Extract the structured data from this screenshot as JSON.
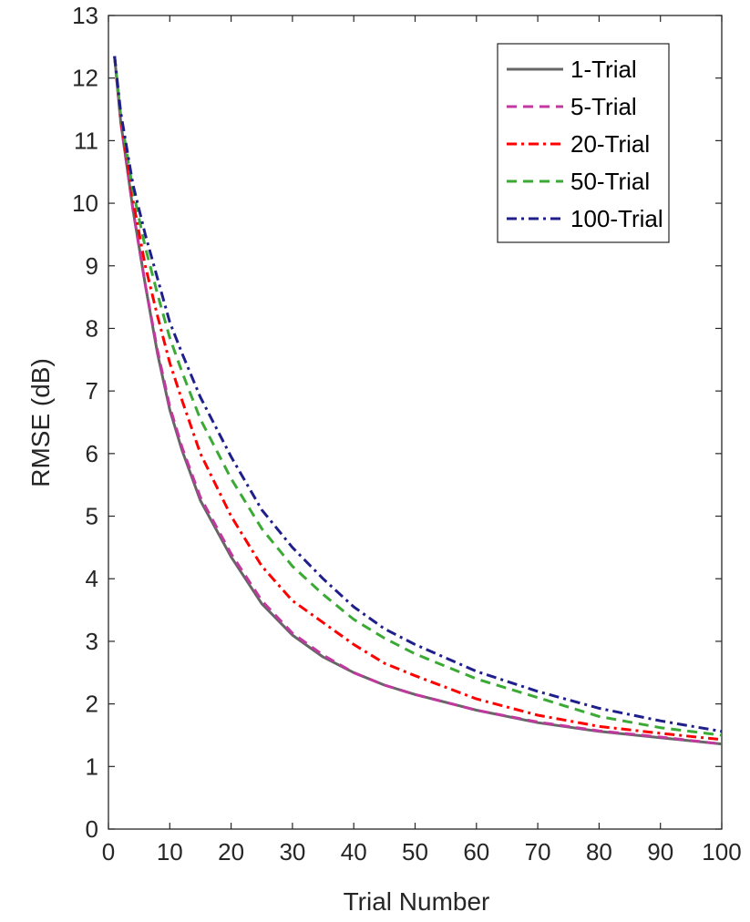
{
  "chart_data": {
    "type": "line",
    "title": "",
    "xlabel": "Trial Number",
    "ylabel": "RMSE (dB)",
    "xlim": [
      0,
      100
    ],
    "ylim": [
      0,
      13
    ],
    "xticks": [
      0,
      10,
      20,
      30,
      40,
      50,
      60,
      70,
      80,
      90,
      100
    ],
    "yticks": [
      0,
      1,
      2,
      3,
      4,
      5,
      6,
      7,
      8,
      9,
      10,
      11,
      12,
      13
    ],
    "grid": false,
    "legend_position": "top-right",
    "x": [
      1,
      2,
      4,
      6,
      8,
      10,
      12,
      15,
      20,
      25,
      30,
      35,
      40,
      45,
      50,
      60,
      70,
      80,
      90,
      100
    ],
    "series": [
      {
        "name": "1-Trial",
        "color": "#666666",
        "style": "solid",
        "values": [
          12.35,
          11.3,
          9.9,
          8.7,
          7.6,
          6.7,
          6.05,
          5.25,
          4.35,
          3.6,
          3.1,
          2.75,
          2.5,
          2.3,
          2.15,
          1.9,
          1.7,
          1.56,
          1.46,
          1.36
        ]
      },
      {
        "name": "5-Trial",
        "color": "#c1389e",
        "style": "dashed",
        "values": [
          12.35,
          11.3,
          9.9,
          8.7,
          7.65,
          6.75,
          6.1,
          5.3,
          4.4,
          3.65,
          3.13,
          2.78,
          2.5,
          2.3,
          2.15,
          1.9,
          1.71,
          1.57,
          1.47,
          1.36
        ]
      },
      {
        "name": "20-Trial",
        "color": "#ff0000",
        "style": "dashdot",
        "values": [
          12.35,
          11.35,
          10.05,
          9.0,
          8.2,
          7.45,
          6.85,
          6.0,
          5.0,
          4.2,
          3.65,
          3.3,
          2.95,
          2.65,
          2.45,
          2.08,
          1.82,
          1.64,
          1.53,
          1.43
        ]
      },
      {
        "name": "50-Trial",
        "color": "#3aaa35",
        "style": "dashed",
        "values": [
          12.35,
          11.4,
          10.2,
          9.3,
          8.55,
          7.85,
          7.3,
          6.55,
          5.6,
          4.8,
          4.2,
          3.75,
          3.35,
          3.05,
          2.8,
          2.4,
          2.1,
          1.8,
          1.62,
          1.5
        ]
      },
      {
        "name": "100-Trial",
        "color": "#1f1f8c",
        "style": "dashdot",
        "values": [
          12.35,
          11.45,
          10.3,
          9.5,
          8.8,
          8.1,
          7.6,
          6.9,
          5.95,
          5.1,
          4.5,
          4.0,
          3.55,
          3.2,
          2.95,
          2.52,
          2.2,
          1.93,
          1.73,
          1.56
        ]
      }
    ]
  }
}
